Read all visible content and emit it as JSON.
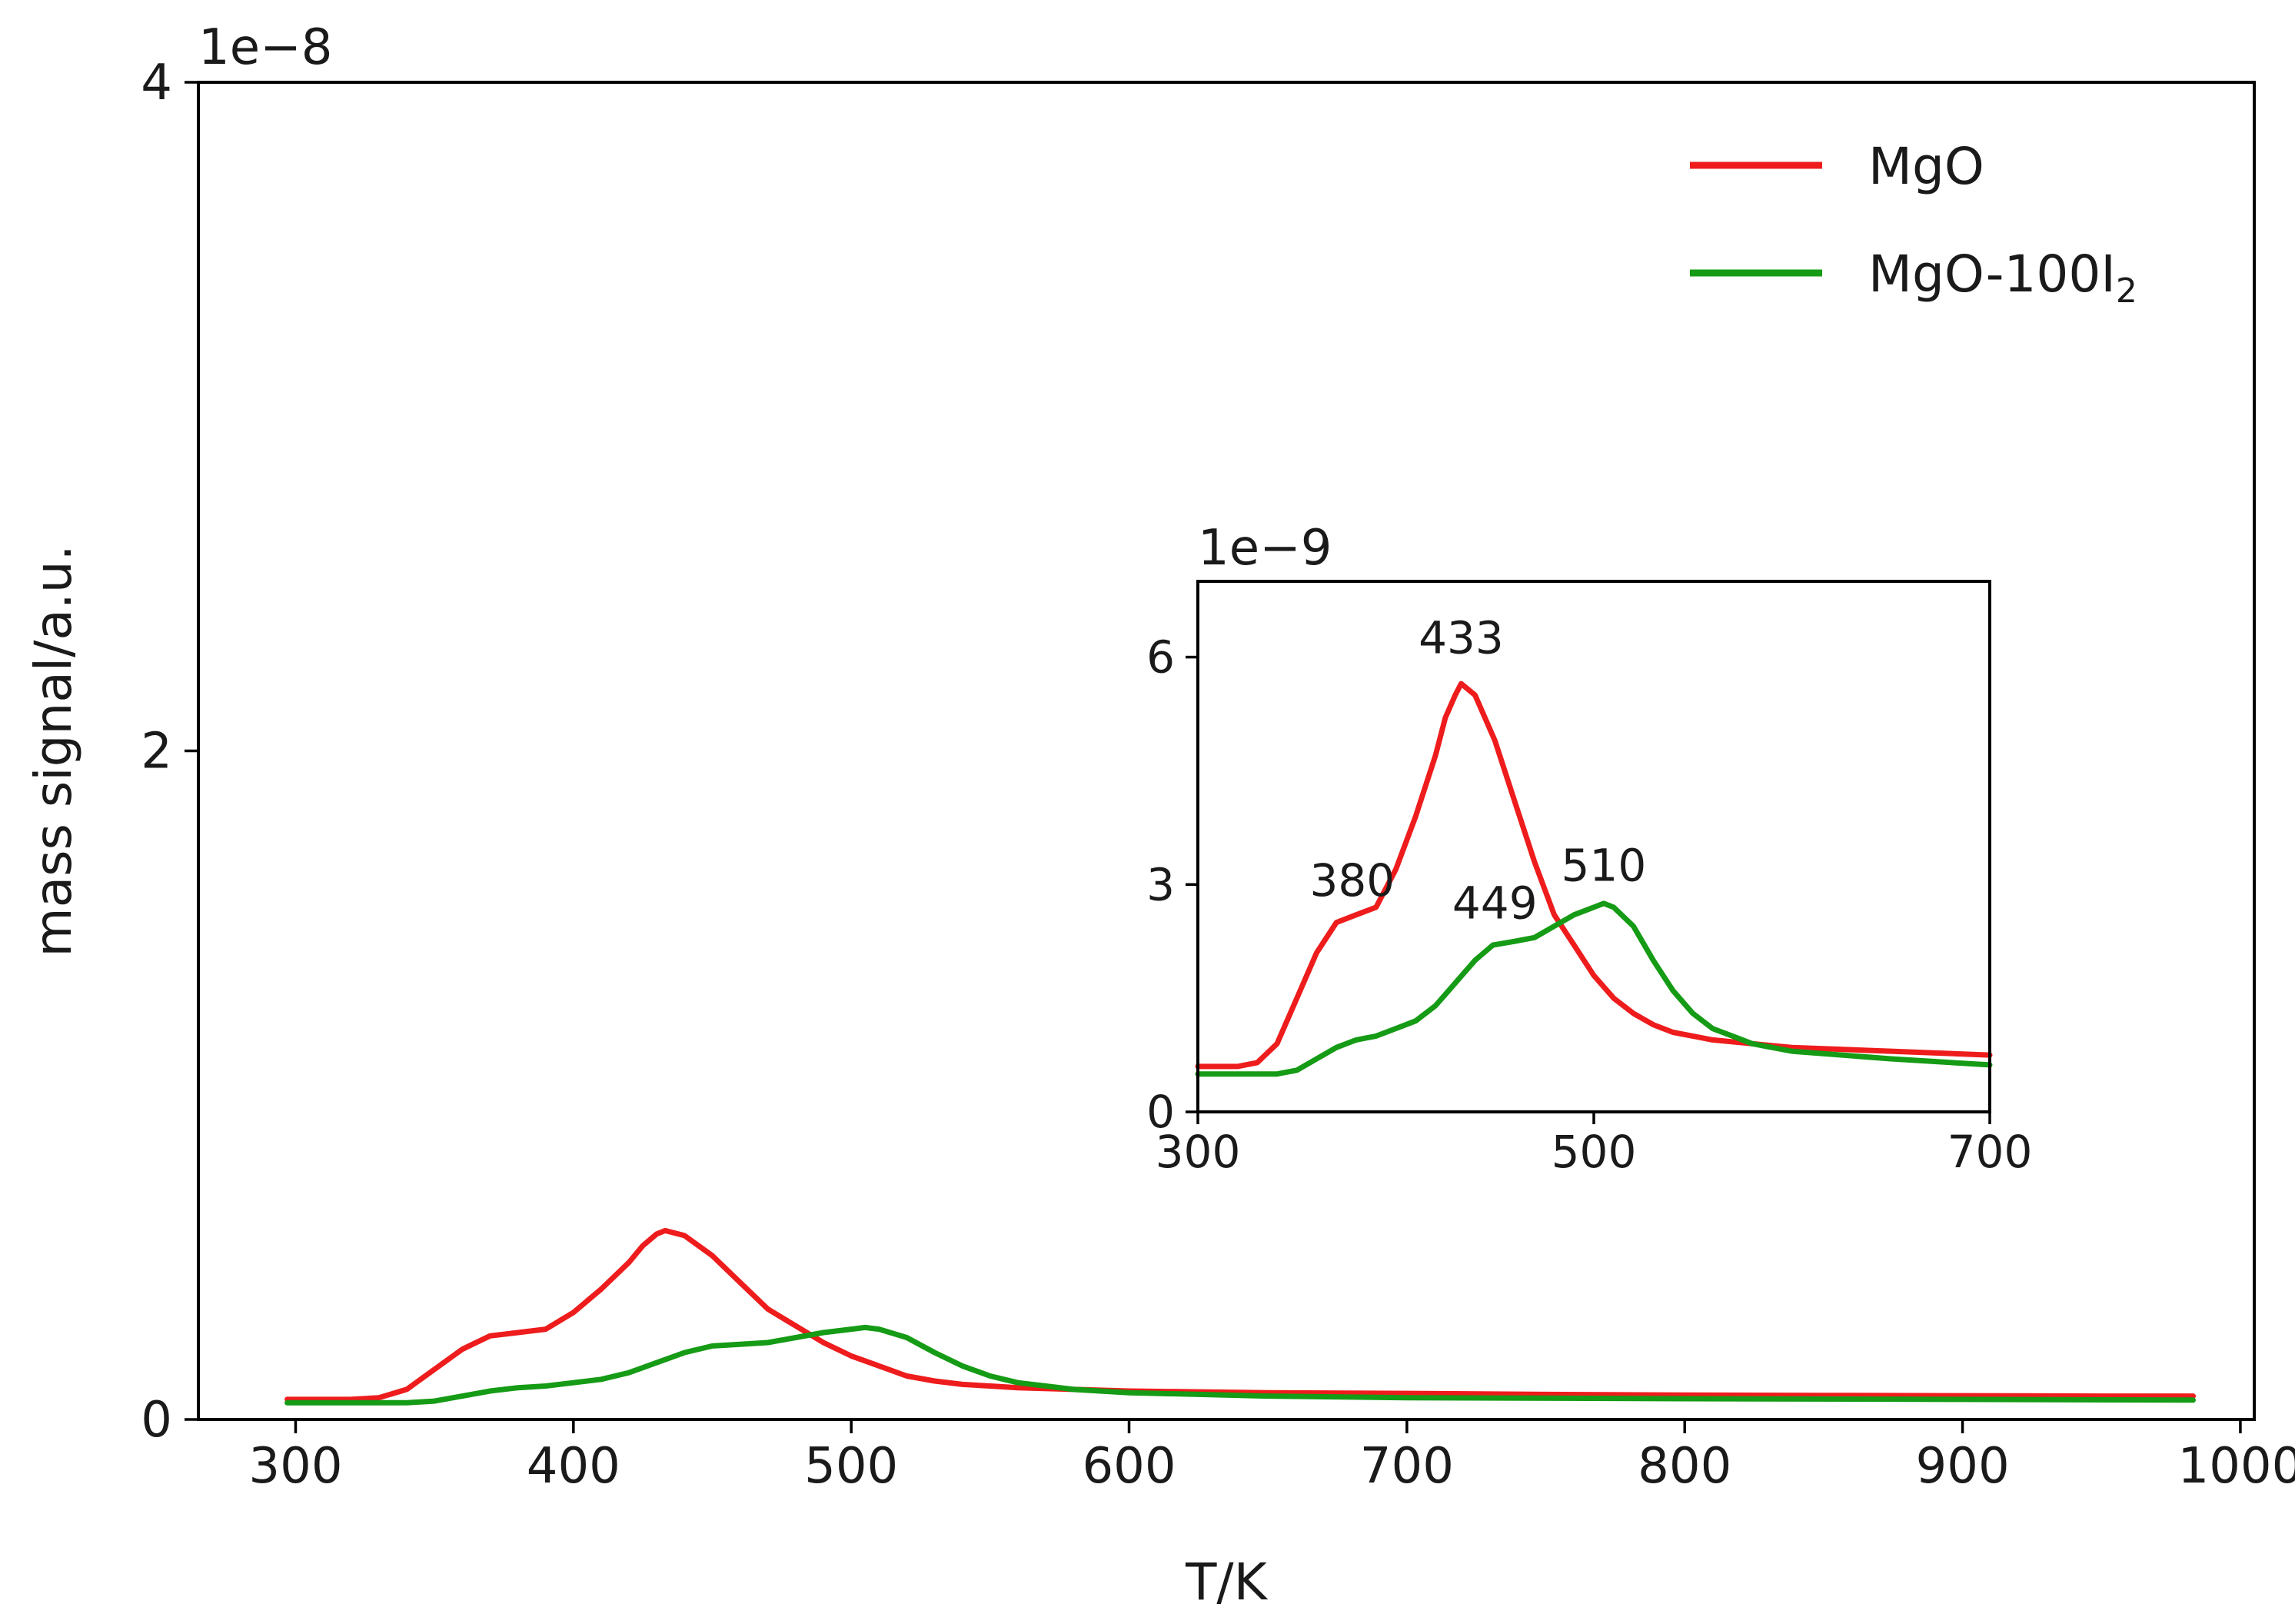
{
  "chart_data": [
    {
      "id": "main",
      "type": "line",
      "xlabel": "T/K",
      "ylabel": "mass signal/a.u.",
      "y_offset_label": "1e−8",
      "xlim": [
        265,
        1005
      ],
      "ylim": [
        0,
        4
      ],
      "x_ticks": [
        300,
        400,
        500,
        600,
        700,
        800,
        900,
        1000
      ],
      "x_tick_labels": [
        "300",
        "400",
        "500",
        "600",
        "700",
        "800",
        "900",
        "1000"
      ],
      "y_ticks": [
        0,
        2,
        4
      ],
      "y_tick_labels": [
        "0",
        "2",
        "4"
      ],
      "legend": {
        "placement": "top-right",
        "entries": [
          {
            "series": "MgO",
            "label": "MgO"
          },
          {
            "series": "MgO-100I2",
            "label": "MgO-100I",
            "subscript": "2"
          }
        ]
      },
      "series": [
        {
          "name": "MgO",
          "color": "#ee1c1c",
          "x": [
            297,
            320,
            330,
            340,
            350,
            360,
            370,
            380,
            390,
            400,
            410,
            420,
            425,
            430,
            433,
            440,
            450,
            460,
            470,
            480,
            490,
            500,
            510,
            520,
            530,
            540,
            550,
            560,
            580,
            600,
            650,
            700,
            750,
            800,
            850,
            900,
            950,
            983
          ],
          "y": [
            0.06,
            0.06,
            0.065,
            0.09,
            0.15,
            0.21,
            0.25,
            0.26,
            0.27,
            0.32,
            0.39,
            0.47,
            0.52,
            0.555,
            0.565,
            0.55,
            0.49,
            0.41,
            0.33,
            0.28,
            0.23,
            0.19,
            0.16,
            0.13,
            0.115,
            0.105,
            0.1,
            0.095,
            0.09,
            0.085,
            0.08,
            0.078,
            0.075,
            0.073,
            0.072,
            0.071,
            0.07,
            0.07
          ]
        },
        {
          "name": "MgO-100I2",
          "color": "#159b15",
          "x": [
            297,
            320,
            340,
            350,
            360,
            370,
            380,
            390,
            400,
            410,
            420,
            430,
            440,
            450,
            460,
            470,
            480,
            490,
            500,
            505,
            510,
            520,
            530,
            540,
            550,
            560,
            570,
            580,
            600,
            650,
            700,
            800,
            900,
            983
          ],
          "y": [
            0.05,
            0.05,
            0.05,
            0.055,
            0.07,
            0.085,
            0.095,
            0.1,
            0.11,
            0.12,
            0.14,
            0.17,
            0.2,
            0.22,
            0.225,
            0.23,
            0.245,
            0.26,
            0.27,
            0.275,
            0.27,
            0.245,
            0.2,
            0.16,
            0.13,
            0.11,
            0.1,
            0.09,
            0.08,
            0.07,
            0.065,
            0.062,
            0.06,
            0.058
          ]
        }
      ]
    },
    {
      "id": "inset",
      "type": "line",
      "y_offset_label": "1e−9",
      "xlim": [
        300,
        700
      ],
      "ylim": [
        0,
        7
      ],
      "x_ticks": [
        300,
        500,
        700
      ],
      "x_tick_labels": [
        "300",
        "500",
        "700"
      ],
      "y_ticks": [
        0,
        3,
        6
      ],
      "y_tick_labels": [
        "0",
        "3",
        "6"
      ],
      "annotations": [
        {
          "text": "433",
          "x": 433,
          "y": 6.05
        },
        {
          "text": "380",
          "x": 378,
          "y": 2.85
        },
        {
          "text": "449",
          "x": 450,
          "y": 2.55
        },
        {
          "text": "510",
          "x": 505,
          "y": 3.05
        }
      ],
      "series": [
        {
          "name": "MgO",
          "color": "#ee1c1c",
          "x": [
            300,
            320,
            330,
            340,
            350,
            360,
            365,
            370,
            380,
            390,
            400,
            410,
            420,
            425,
            430,
            433,
            440,
            450,
            460,
            470,
            480,
            490,
            500,
            510,
            520,
            530,
            540,
            550,
            560,
            580,
            600,
            650,
            700
          ],
          "y": [
            0.6,
            0.6,
            0.65,
            0.9,
            1.5,
            2.1,
            2.3,
            2.5,
            2.6,
            2.7,
            3.2,
            3.9,
            4.7,
            5.2,
            5.5,
            5.65,
            5.5,
            4.9,
            4.1,
            3.3,
            2.6,
            2.2,
            1.8,
            1.5,
            1.3,
            1.15,
            1.05,
            1.0,
            0.95,
            0.9,
            0.85,
            0.8,
            0.75
          ]
        },
        {
          "name": "MgO-100I2",
          "color": "#159b15",
          "x": [
            300,
            320,
            340,
            350,
            360,
            370,
            380,
            390,
            400,
            410,
            420,
            430,
            440,
            449,
            460,
            470,
            480,
            490,
            500,
            505,
            510,
            520,
            530,
            540,
            550,
            560,
            570,
            580,
            600,
            650,
            700
          ],
          "y": [
            0.5,
            0.5,
            0.5,
            0.55,
            0.7,
            0.85,
            0.95,
            1.0,
            1.1,
            1.2,
            1.4,
            1.7,
            2.0,
            2.2,
            2.25,
            2.3,
            2.45,
            2.6,
            2.7,
            2.75,
            2.7,
            2.45,
            2.0,
            1.6,
            1.3,
            1.1,
            1.0,
            0.9,
            0.8,
            0.7,
            0.62
          ]
        }
      ]
    }
  ]
}
